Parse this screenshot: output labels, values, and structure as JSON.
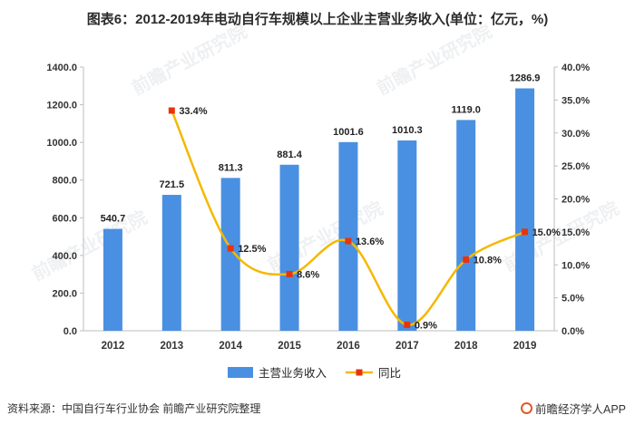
{
  "chart_data": {
    "type": "bar",
    "title": "图表6：2012-2019年电动自行车规模以上企业主营业务收入(单位：亿元，%)",
    "categories": [
      "2012",
      "2013",
      "2014",
      "2015",
      "2016",
      "2017",
      "2018",
      "2019"
    ],
    "series": [
      {
        "name": "主营业务收入",
        "type": "bar",
        "axis": "left",
        "color": "#4a90e2",
        "values": [
          540.7,
          721.5,
          811.3,
          881.4,
          1001.6,
          1010.3,
          1119.0,
          1286.9
        ],
        "labels": [
          "540.7",
          "721.5",
          "811.3",
          "881.4",
          "1001.6",
          "1010.3",
          "1119.0",
          "1286.9"
        ]
      },
      {
        "name": "同比",
        "type": "line",
        "axis": "right",
        "color": "#f5b800",
        "marker_color": "#e8340c",
        "values": [
          null,
          33.4,
          12.5,
          8.6,
          13.6,
          0.9,
          10.8,
          15.0
        ],
        "labels": [
          "",
          "33.4%",
          "12.5%",
          "8.6%",
          "13.6%",
          "0.9%",
          "10.8%",
          "15.0%"
        ]
      }
    ],
    "y_left": {
      "range": [
        0,
        1400
      ],
      "ticks": [
        "0.0",
        "200.0",
        "400.0",
        "600.0",
        "800.0",
        "1000.0",
        "1200.0",
        "1400.0"
      ]
    },
    "y_right": {
      "range": [
        0,
        40
      ],
      "ticks": [
        "0.0%",
        "5.0%",
        "10.0%",
        "15.0%",
        "20.0%",
        "25.0%",
        "30.0%",
        "35.0%",
        "40.0%"
      ]
    },
    "legend_position": "bottom-center"
  },
  "watermark": "前瞻产业研究院",
  "footer": {
    "source": "资料来源：中国自行车行业协会 前瞻产业研究院整理",
    "brand": "前瞻经济学人APP"
  }
}
